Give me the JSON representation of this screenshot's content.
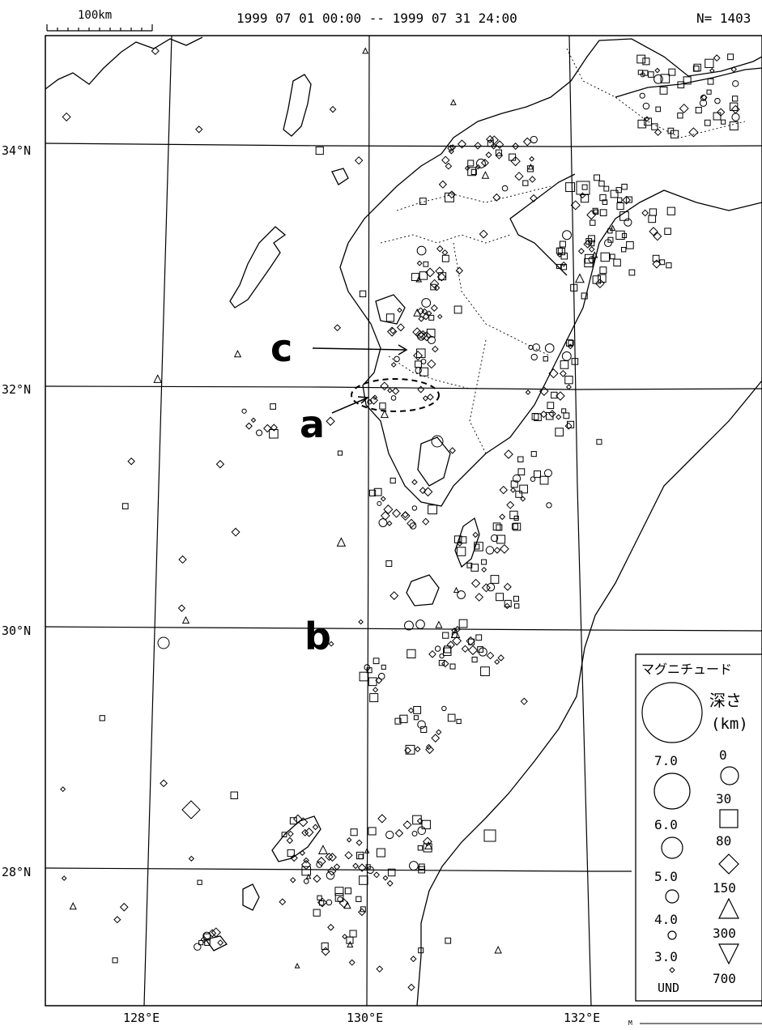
{
  "header": {
    "scale_label": "100km",
    "date_range": "1999 07 01 00:00 -- 1999 07 31 24:00",
    "count": "N= 1403"
  },
  "axes": {
    "lat_labels": [
      "34°N",
      "32°N",
      "30°N",
      "28°N"
    ],
    "lon_labels": [
      "128°E",
      "130°E",
      "132°E"
    ]
  },
  "annotations": {
    "a": "a",
    "b": "b",
    "c": "c"
  },
  "legend": {
    "title": "マグニチュード",
    "depth_title_line1": "深さ",
    "depth_title_line2": "(km)",
    "magnitudes": [
      "7.0",
      "6.0",
      "5.0",
      "4.0",
      "3.0",
      "UND"
    ],
    "depths": [
      "0",
      "30",
      "80",
      "150",
      "300",
      "700"
    ]
  },
  "footer_stub": "M",
  "colors": {
    "ink": "#000000",
    "background": "#ffffff"
  }
}
